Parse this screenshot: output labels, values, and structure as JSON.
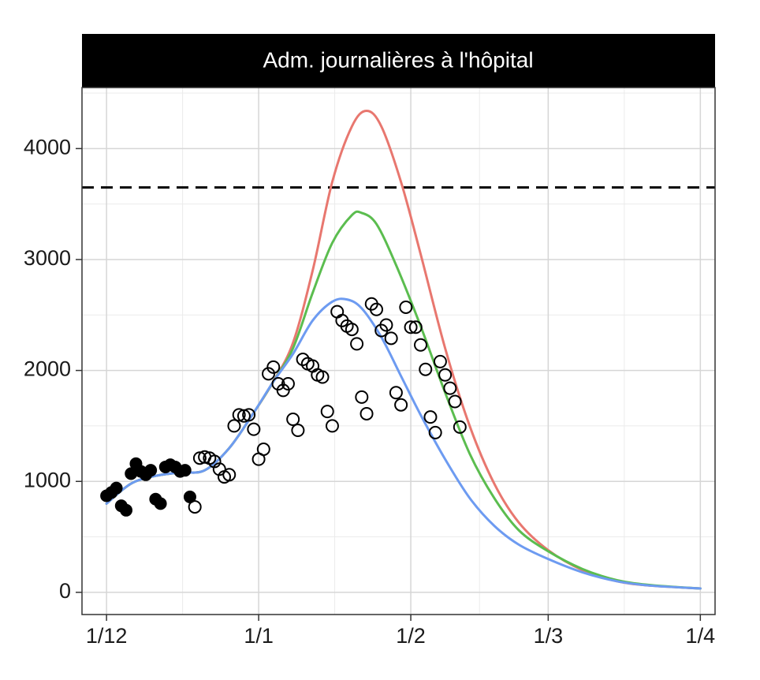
{
  "chart_data": {
    "type": "scatter",
    "title": "Adm. journalières à l'hôpital",
    "xlabel": "",
    "ylabel": "",
    "x_axis": {
      "type": "date",
      "start": "2020-12-01",
      "range": [
        "2020-11-26",
        "2021-04-04"
      ],
      "tick_labels": [
        "1/12",
        "1/1",
        "1/2",
        "1/3",
        "1/4"
      ],
      "tick_dates": [
        "2020-12-01",
        "2021-01-01",
        "2021-02-01",
        "2021-03-01",
        "2021-04-01"
      ]
    },
    "y_axis": {
      "range": [
        -200,
        4550
      ],
      "ticks": [
        0,
        1000,
        2000,
        3000,
        4000
      ],
      "tick_labels": [
        "0",
        "1000",
        "2000",
        "3000",
        "4000"
      ]
    },
    "grid": true,
    "threshold": {
      "value": 3650,
      "style": "dashed",
      "color": "#000000"
    },
    "series": [
      {
        "kind": "line",
        "color": "#e8776f",
        "points": [
          [
            "2020-12-01",
            800
          ],
          [
            "2020-12-06",
            980
          ],
          [
            "2020-12-11",
            1050
          ],
          [
            "2020-12-16",
            1080
          ],
          [
            "2020-12-21",
            1100
          ],
          [
            "2020-12-26",
            1300
          ],
          [
            "2020-12-31",
            1620
          ],
          [
            "2021-01-04",
            1900
          ],
          [
            "2021-01-08",
            2250
          ],
          [
            "2021-01-12",
            2900
          ],
          [
            "2021-01-16",
            3700
          ],
          [
            "2021-01-20",
            4200
          ],
          [
            "2021-01-23",
            4340
          ],
          [
            "2021-01-26",
            4200
          ],
          [
            "2021-01-30",
            3700
          ],
          [
            "2021-02-03",
            3050
          ],
          [
            "2021-02-08",
            2200
          ],
          [
            "2021-02-13",
            1500
          ],
          [
            "2021-02-18",
            980
          ],
          [
            "2021-02-23",
            630
          ],
          [
            "2021-03-01",
            380
          ],
          [
            "2021-03-08",
            200
          ],
          [
            "2021-03-15",
            100
          ],
          [
            "2021-03-22",
            60
          ],
          [
            "2021-04-01",
            35
          ]
        ]
      },
      {
        "kind": "line",
        "color": "#5bbd4f",
        "points": [
          [
            "2020-12-01",
            800
          ],
          [
            "2020-12-06",
            980
          ],
          [
            "2020-12-11",
            1050
          ],
          [
            "2020-12-16",
            1080
          ],
          [
            "2020-12-21",
            1100
          ],
          [
            "2020-12-26",
            1300
          ],
          [
            "2020-12-31",
            1620
          ],
          [
            "2021-01-04",
            1900
          ],
          [
            "2021-01-08",
            2200
          ],
          [
            "2021-01-12",
            2700
          ],
          [
            "2021-01-16",
            3150
          ],
          [
            "2021-01-20",
            3400
          ],
          [
            "2021-01-22",
            3420
          ],
          [
            "2021-01-25",
            3320
          ],
          [
            "2021-01-29",
            2950
          ],
          [
            "2021-02-03",
            2400
          ],
          [
            "2021-02-08",
            1800
          ],
          [
            "2021-02-13",
            1250
          ],
          [
            "2021-02-18",
            850
          ],
          [
            "2021-02-23",
            560
          ],
          [
            "2021-03-01",
            370
          ],
          [
            "2021-03-08",
            210
          ],
          [
            "2021-03-15",
            110
          ],
          [
            "2021-03-22",
            65
          ],
          [
            "2021-04-01",
            35
          ]
        ]
      },
      {
        "kind": "line",
        "color": "#6d9bf1",
        "points": [
          [
            "2020-12-01",
            800
          ],
          [
            "2020-12-06",
            980
          ],
          [
            "2020-12-11",
            1050
          ],
          [
            "2020-12-16",
            1080
          ],
          [
            "2020-12-21",
            1100
          ],
          [
            "2020-12-26",
            1300
          ],
          [
            "2020-12-31",
            1620
          ],
          [
            "2021-01-04",
            1900
          ],
          [
            "2021-01-08",
            2150
          ],
          [
            "2021-01-12",
            2450
          ],
          [
            "2021-01-16",
            2620
          ],
          [
            "2021-01-19",
            2640
          ],
          [
            "2021-01-22",
            2560
          ],
          [
            "2021-01-26",
            2300
          ],
          [
            "2021-01-30",
            1950
          ],
          [
            "2021-02-03",
            1600
          ],
          [
            "2021-02-08",
            1200
          ],
          [
            "2021-02-13",
            850
          ],
          [
            "2021-02-18",
            600
          ],
          [
            "2021-02-23",
            430
          ],
          [
            "2021-03-01",
            300
          ],
          [
            "2021-03-08",
            180
          ],
          [
            "2021-03-15",
            100
          ],
          [
            "2021-03-22",
            60
          ],
          [
            "2021-04-01",
            35
          ]
        ]
      },
      {
        "kind": "points",
        "fill": "filled",
        "points": [
          [
            "2020-12-01",
            870
          ],
          [
            "2020-12-02",
            900
          ],
          [
            "2020-12-03",
            940
          ],
          [
            "2020-12-04",
            780
          ],
          [
            "2020-12-05",
            740
          ],
          [
            "2020-12-06",
            1070
          ],
          [
            "2020-12-07",
            1160
          ],
          [
            "2020-12-08",
            1090
          ],
          [
            "2020-12-09",
            1060
          ],
          [
            "2020-12-10",
            1100
          ],
          [
            "2020-12-11",
            840
          ],
          [
            "2020-12-12",
            800
          ],
          [
            "2020-12-13",
            1130
          ],
          [
            "2020-12-14",
            1150
          ],
          [
            "2020-12-15",
            1130
          ],
          [
            "2020-12-16",
            1090
          ],
          [
            "2020-12-17",
            1100
          ],
          [
            "2020-12-18",
            860
          ]
        ]
      },
      {
        "kind": "points",
        "fill": "open",
        "points": [
          [
            "2020-12-19",
            770
          ],
          [
            "2020-12-20",
            1210
          ],
          [
            "2020-12-21",
            1220
          ],
          [
            "2020-12-22",
            1210
          ],
          [
            "2020-12-23",
            1180
          ],
          [
            "2020-12-24",
            1110
          ],
          [
            "2020-12-25",
            1040
          ],
          [
            "2020-12-26",
            1060
          ],
          [
            "2020-12-27",
            1500
          ],
          [
            "2020-12-28",
            1600
          ],
          [
            "2020-12-29",
            1590
          ],
          [
            "2020-12-30",
            1600
          ],
          [
            "2020-12-31",
            1470
          ],
          [
            "2021-01-01",
            1200
          ],
          [
            "2021-01-02",
            1290
          ],
          [
            "2021-01-03",
            1970
          ],
          [
            "2021-01-04",
            2030
          ],
          [
            "2021-01-05",
            1880
          ],
          [
            "2021-01-06",
            1820
          ],
          [
            "2021-01-07",
            1880
          ],
          [
            "2021-01-08",
            1560
          ],
          [
            "2021-01-09",
            1460
          ],
          [
            "2021-01-10",
            2100
          ],
          [
            "2021-01-11",
            2060
          ],
          [
            "2021-01-12",
            2040
          ],
          [
            "2021-01-13",
            1960
          ],
          [
            "2021-01-14",
            1940
          ],
          [
            "2021-01-15",
            1630
          ],
          [
            "2021-01-16",
            1500
          ],
          [
            "2021-01-17",
            2530
          ],
          [
            "2021-01-18",
            2450
          ],
          [
            "2021-01-19",
            2400
          ],
          [
            "2021-01-20",
            2370
          ],
          [
            "2021-01-21",
            2240
          ],
          [
            "2021-01-22",
            1760
          ],
          [
            "2021-01-23",
            1610
          ],
          [
            "2021-01-24",
            2600
          ],
          [
            "2021-01-25",
            2550
          ],
          [
            "2021-01-26",
            2360
          ],
          [
            "2021-01-27",
            2410
          ],
          [
            "2021-01-28",
            2290
          ],
          [
            "2021-01-29",
            1800
          ],
          [
            "2021-01-30",
            1690
          ],
          [
            "2021-01-31",
            2570
          ],
          [
            "2021-02-01",
            2390
          ],
          [
            "2021-02-02",
            2390
          ],
          [
            "2021-02-03",
            2230
          ],
          [
            "2021-02-04",
            2010
          ],
          [
            "2021-02-05",
            1580
          ],
          [
            "2021-02-06",
            1440
          ],
          [
            "2021-02-07",
            2080
          ],
          [
            "2021-02-08",
            1960
          ],
          [
            "2021-02-09",
            1840
          ],
          [
            "2021-02-10",
            1720
          ],
          [
            "2021-02-11",
            1490
          ]
        ]
      }
    ]
  }
}
